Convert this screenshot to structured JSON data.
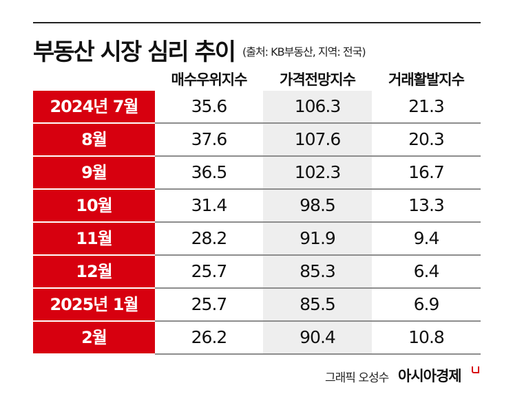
{
  "chart_data": {
    "type": "table",
    "title": "부동산 시장 심리 추이",
    "source": "(출처: KB부동산, 지역: 전국)",
    "columns": [
      "매수우위지수",
      "가격전망지수",
      "거래활발지수"
    ],
    "rows": [
      {
        "label": "2024년 7월",
        "values": [
          "35.6",
          "106.3",
          "21.3"
        ]
      },
      {
        "label": "8월",
        "values": [
          "37.6",
          "107.6",
          "20.3"
        ]
      },
      {
        "label": "9월",
        "values": [
          "36.5",
          "102.3",
          "16.7"
        ]
      },
      {
        "label": "10월",
        "values": [
          "31.4",
          "98.5",
          "13.3"
        ]
      },
      {
        "label": "11월",
        "values": [
          "28.2",
          "91.9",
          "9.4"
        ]
      },
      {
        "label": "12월",
        "values": [
          "25.7",
          "85.3",
          "6.4"
        ]
      },
      {
        "label": "2025년 1월",
        "values": [
          "25.7",
          "85.5",
          "6.9"
        ]
      },
      {
        "label": "2월",
        "values": [
          "26.2",
          "90.4",
          "10.8"
        ]
      }
    ]
  },
  "footer": {
    "credit": "그래픽 오성수",
    "brand": "아시아경제"
  },
  "colors": {
    "accent": "#d7000f",
    "highlight_column": "#eeeeee"
  }
}
